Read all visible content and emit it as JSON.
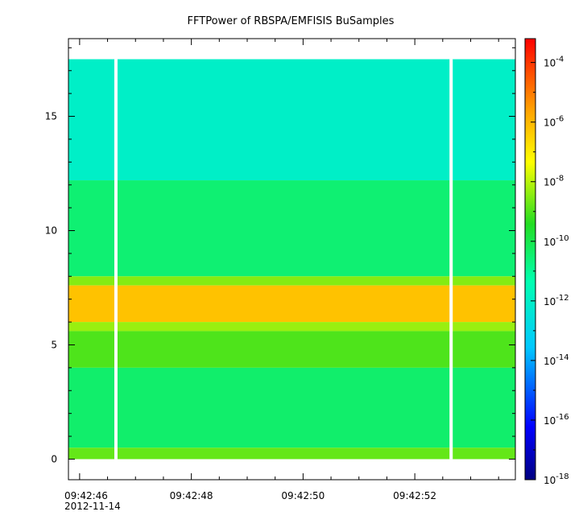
{
  "chart_data": {
    "type": "heatmap",
    "title": "FFTPower of RBSPA/EMFISIS  BuSamples",
    "xlabel": "",
    "ylabel": "",
    "x_ticks": [
      {
        "label": "09:42:46",
        "t": 46
      },
      {
        "label": "09:42:48",
        "t": 48
      },
      {
        "label": "09:42:50",
        "t": 50
      },
      {
        "label": "09:42:52",
        "t": 52
      }
    ],
    "x_date_label": "2012-11-14",
    "x_range_seconds": [
      45.8,
      53.8
    ],
    "y_ticks": [
      0,
      5,
      10,
      15
    ],
    "y_range": [
      -0.9,
      18.4
    ],
    "data_y_max": 17.5,
    "gaps_seconds": [
      46.65,
      52.65
    ],
    "colorbar": {
      "scale": "log",
      "range_exponent": [
        -18,
        -3.2
      ],
      "tick_exponents": [
        -4,
        -6,
        -8,
        -10,
        -12,
        -14,
        -16,
        -18
      ],
      "tick_base": "10"
    },
    "bands": [
      {
        "y_from": 12.2,
        "y_to": 17.5,
        "level_exponent": -12.0
      },
      {
        "y_from": 8.0,
        "y_to": 12.2,
        "level_exponent": -10.5
      },
      {
        "y_from": 7.6,
        "y_to": 8.0,
        "level_exponent": -8.5
      },
      {
        "y_from": 6.0,
        "y_to": 7.6,
        "level_exponent": -6.2
      },
      {
        "y_from": 5.6,
        "y_to": 6.0,
        "level_exponent": -8.3
      },
      {
        "y_from": 4.0,
        "y_to": 5.6,
        "level_exponent": -9.0
      },
      {
        "y_from": 0.5,
        "y_to": 4.0,
        "level_exponent": -10.4
      },
      {
        "y_from": 0.0,
        "y_to": 0.5,
        "level_exponent": -8.8
      }
    ],
    "grid": false,
    "legend": "colorbar-right"
  }
}
